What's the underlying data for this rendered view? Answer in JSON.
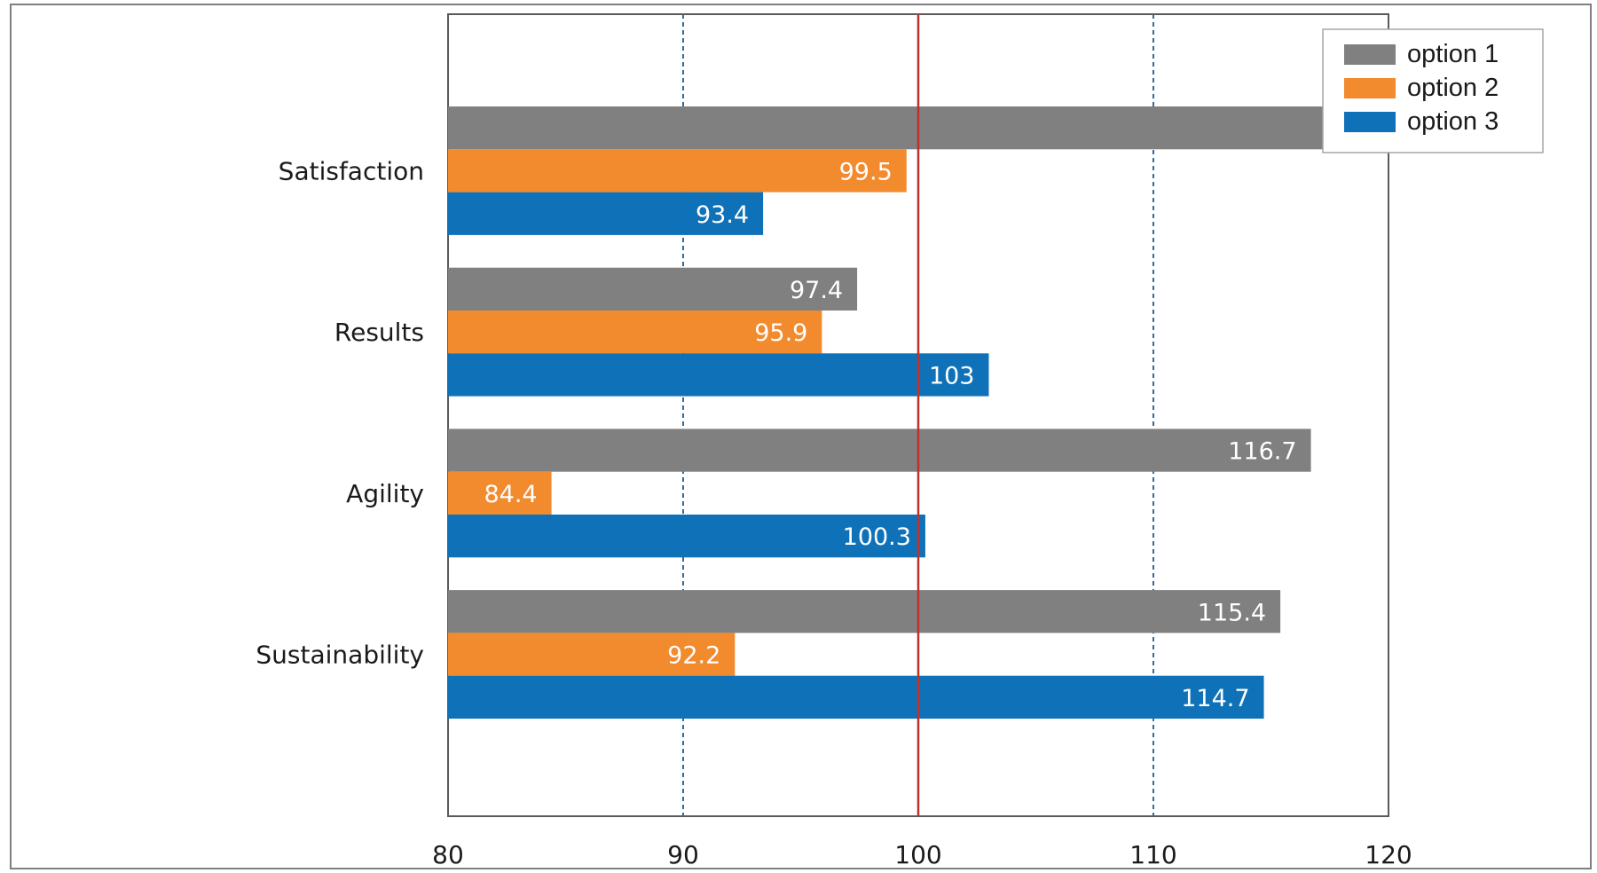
{
  "chart_data": {
    "type": "bar",
    "orientation": "horizontal",
    "title": "",
    "xlabel": "",
    "ylabel": "",
    "xlim": [
      80,
      120
    ],
    "x_ticks": [
      "80",
      "90",
      "100",
      "110",
      "120"
    ],
    "categories": [
      "Satisfaction",
      "Results",
      "Agility",
      "Sustainability"
    ],
    "series": [
      {
        "name": "option 1",
        "color": "#808080",
        "values": [
          120,
          97.4,
          116.7,
          115.4
        ],
        "labels": [
          "120",
          "97.4",
          "116.7",
          "115.4"
        ]
      },
      {
        "name": "option 2",
        "color": "#f28a2e",
        "values": [
          99.5,
          95.9,
          84.4,
          92.2
        ],
        "labels": [
          "99.5",
          "95.9",
          "84.4",
          "92.2"
        ]
      },
      {
        "name": "option 3",
        "color": "#0f72b9",
        "values": [
          93.4,
          103,
          100.3,
          114.7
        ],
        "labels": [
          "93.4",
          "103",
          "100.3",
          "114.7"
        ]
      }
    ],
    "reference_line": {
      "value": 100,
      "color": "#c0312b"
    },
    "grid": {
      "vertical_dashed": [
        90,
        110
      ],
      "color": "#2e6b9e"
    },
    "legend": {
      "position": "top-right"
    }
  }
}
